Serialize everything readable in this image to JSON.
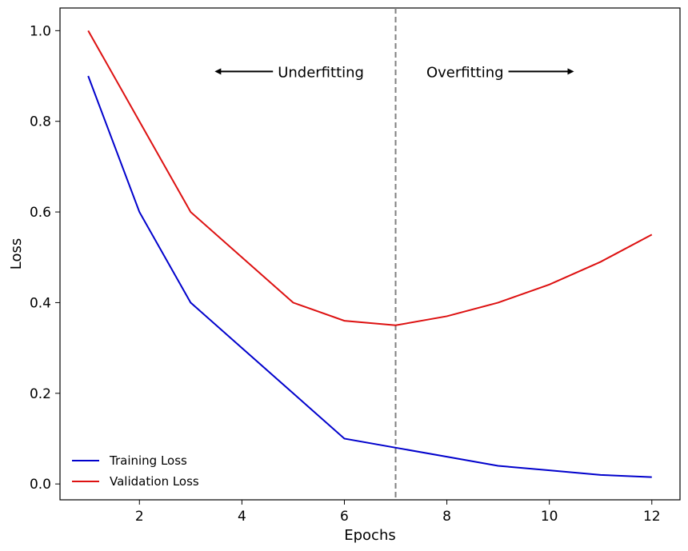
{
  "chart_data": {
    "type": "line",
    "xlabel": "Epochs",
    "ylabel": "Loss",
    "xlim": [
      0.45,
      12.55
    ],
    "ylim": [
      -0.035,
      1.05
    ],
    "xticks": [
      2,
      4,
      6,
      8,
      10,
      12
    ],
    "yticks": [
      "0.0",
      "0.2",
      "0.4",
      "0.6",
      "0.8",
      "1.0"
    ],
    "x": [
      1,
      2,
      3,
      4,
      5,
      6,
      7,
      8,
      9,
      10,
      11,
      12
    ],
    "series": [
      {
        "name": "Training Loss",
        "color": "#0000cc",
        "values": [
          0.9,
          0.6,
          0.4,
          0.3,
          0.2,
          0.1,
          0.08,
          0.06,
          0.04,
          0.03,
          0.02,
          0.015
        ]
      },
      {
        "name": "Validation Loss",
        "color": "#dd1111",
        "values": [
          1.0,
          0.8,
          0.6,
          0.5,
          0.4,
          0.36,
          0.35,
          0.37,
          0.4,
          0.44,
          0.49,
          0.55
        ]
      }
    ],
    "vline": {
      "x": 7,
      "color": "#808080",
      "style": "dashed"
    },
    "annotations": [
      {
        "text": "Underfitting",
        "x": 4.7,
        "y": 0.91,
        "arrow": "left",
        "arrow_to_x": 3.5
      },
      {
        "text": "Overfitting",
        "x": 7.6,
        "y": 0.91,
        "arrow": "right",
        "arrow_to_x": 10.45
      }
    ],
    "legend": {
      "position": "lower-left"
    },
    "grid": false
  }
}
